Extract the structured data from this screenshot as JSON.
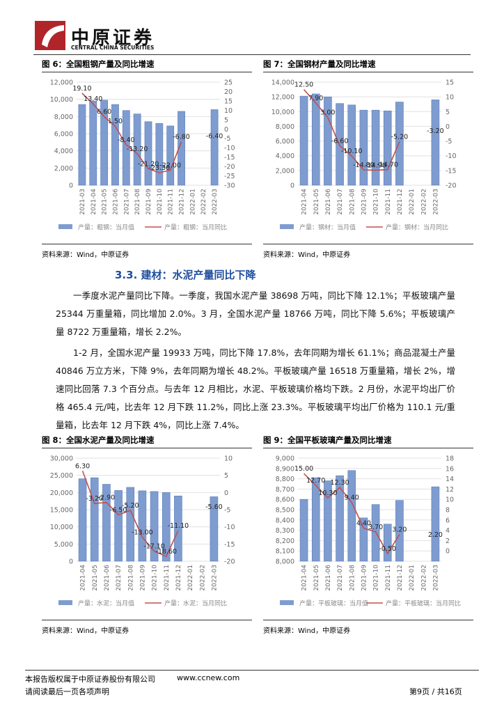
{
  "document": {
    "logo_cn": "中原证券",
    "logo_en": "CENTRAL CHINA SECURITIES",
    "section": "3.3. 建材：水泥产量同比下降",
    "paragraphs": [
      "一季度水泥产量同比下降。一季度，我国水泥产量 38698 万吨，同比下降 12.1%；平板玻璃产量 25344 万重量箱，同比增加 2.0%。3 月，全国水泥产量 18766 万吨，同比下降 5.6%；平板玻璃产量 8722 万重量箱，增长 2.2%。",
      "1-2 月，全国水泥产量 19933 万吨，同比下降 17.8%，去年同期为增长 61.1%；商品混凝土产量 40846 万立方米，下降 9%，去年同期为增长 48.2%。平板玻璃产量 16518 万重量箱，增长 2%，增速同比回落 7.3 个百分点。与去年 12 月相比，水泥、平板玻璃价格均下跌。2 月份，水泥平均出厂价格 465.4 元/吨，比去年 12 月下跌 11.2%，同比上涨 23.3%。平板玻璃平均出厂价格为 110.1 元/重量箱，比去年 12 月下跌 4%，同比上涨 7.4%。"
    ],
    "footer_copyright": "本报告版权属于中原证券股份有限公司",
    "footer_url": "www.ccnew.com",
    "footer_notice": "请阅读最后一页各项声明",
    "footer_page": "第9页 / 共16页"
  },
  "chart_data": [
    {
      "type": "combo",
      "title": "图 6：全国粗钢产量及同比增速",
      "source": "资料来源：Wind，中原证券",
      "categories": [
        "2021-03",
        "2021-04",
        "2021-05",
        "2021-06",
        "2021-07",
        "2021-08",
        "2021-09",
        "2021-10",
        "2021-11",
        "2021-12",
        "2022-01",
        "2022-02",
        "2022-03"
      ],
      "series": [
        {
          "name": "产量：粗钢：当月值",
          "type": "bar",
          "color": "#7e9ccf",
          "values": [
            9400,
            9800,
            9900,
            9400,
            8700,
            8300,
            7400,
            7200,
            6900,
            8600,
            null,
            null,
            8800
          ]
        },
        {
          "name": "产量：粗钢：当月同比",
          "type": "line",
          "axis": "y2",
          "color": "#c0504d",
          "values": [
            19.1,
            13.4,
            6.6,
            1.5,
            -8.4,
            -13.2,
            -21.2,
            -23.3,
            -22,
            -6.8,
            null,
            null,
            -6.4
          ],
          "value_labels": [
            "19.10",
            "13.40",
            "6.60",
            "1.50",
            "-8.40",
            "-13.20",
            "-21.20",
            "-23.30",
            "-22.00",
            "-6.80",
            null,
            null,
            "-6.40"
          ]
        }
      ],
      "ylim": [
        0,
        12000
      ],
      "yticks": [
        0,
        {
          "value": 2000,
          "label": "2,000"
        },
        {
          "value": 4000,
          "label": "4,000"
        },
        {
          "value": 6000,
          "label": "6,000"
        },
        {
          "value": 8000,
          "label": "8,000"
        },
        {
          "value": 10000,
          "label": "10,000"
        },
        {
          "value": 12000,
          "label": "12,000"
        }
      ],
      "y2lim": [
        -30,
        25
      ],
      "y2ticks": [
        -30,
        -25,
        -20,
        -15,
        -10,
        -5,
        0,
        5,
        10,
        15,
        20,
        25
      ]
    },
    {
      "type": "combo",
      "title": "图 7：全国钢材产量及同比增速",
      "source": "资料来源：Wind，中原证券",
      "categories": [
        "2021-04",
        "2021-05",
        "2021-06",
        "2021-07",
        "2021-08",
        "2021-09",
        "2021-10",
        "2021-11",
        "2021-12",
        "2022-01",
        "2022-02",
        "2022-03"
      ],
      "series": [
        {
          "name": "产量：钢材：当月值",
          "type": "bar",
          "color": "#7e9ccf",
          "values": [
            12100,
            12400,
            12000,
            11100,
            10900,
            10200,
            10200,
            10100,
            11300,
            null,
            null,
            11600
          ]
        },
        {
          "name": "产量：钢材：当月同比",
          "type": "line",
          "axis": "y2",
          "color": "#c0504d",
          "values": [
            12.5,
            7.9,
            3,
            -6.6,
            -10.1,
            -14.8,
            -14.9,
            -14.7,
            -5.2,
            null,
            null,
            -3.2
          ],
          "value_labels": [
            "12.50",
            "7.90",
            "3.00",
            "-6.60",
            "-10.10",
            "-14.80",
            "-14.90",
            "-14.70",
            "-5.20",
            null,
            null,
            "-3.20"
          ]
        }
      ],
      "ylim": [
        0,
        14000
      ],
      "yticks": [
        0,
        {
          "value": 2000,
          "label": "2,000"
        },
        {
          "value": 4000,
          "label": "4,000"
        },
        {
          "value": 6000,
          "label": "6,000"
        },
        {
          "value": 8000,
          "label": "8,000"
        },
        {
          "value": 10000,
          "label": "10,000"
        },
        {
          "value": 12000,
          "label": "12,000"
        },
        {
          "value": 14000,
          "label": "14,000"
        }
      ],
      "y2lim": [
        -20,
        15
      ],
      "y2ticks": [
        -20,
        -15,
        -10,
        -5,
        0,
        5,
        10,
        15
      ]
    },
    {
      "type": "combo",
      "title": "图 8：全国水泥产量及同比增速",
      "source": "资料来源：Wind，中原证券",
      "categories": [
        "2021-04",
        "2021-05",
        "2021-06",
        "2021-07",
        "2021-08",
        "2021-09",
        "2021-10",
        "2021-11",
        "2021-12",
        "2022-01",
        "2022-02",
        "2022-03"
      ],
      "series": [
        {
          "name": "产量：水泥：当月值",
          "type": "bar",
          "color": "#7e9ccf",
          "values": [
            24000,
            24300,
            22400,
            20600,
            21500,
            20500,
            20300,
            20000,
            19000,
            null,
            null,
            18766
          ]
        },
        {
          "name": "产量：水泥：当月同比",
          "type": "line",
          "axis": "y2",
          "color": "#c0504d",
          "values": [
            6.3,
            -3.2,
            -2.9,
            -6.5,
            -5.2,
            -13,
            -17.1,
            -18.6,
            -11.1,
            null,
            null,
            -5.6
          ],
          "value_labels": [
            "6.30",
            "-3.20",
            "-2.90",
            "-6.50",
            "-5.20",
            "-13.00",
            "-17.10",
            "-18.60",
            "-11.10",
            null,
            null,
            "-5.60"
          ]
        }
      ],
      "ylim": [
        0,
        30000
      ],
      "yticks": [
        0,
        {
          "value": 5000,
          "label": "5,000"
        },
        {
          "value": 10000,
          "label": "10,000"
        },
        {
          "value": 15000,
          "label": "15,000"
        },
        {
          "value": 20000,
          "label": "20,000"
        },
        {
          "value": 25000,
          "label": "25,000"
        },
        {
          "value": 30000,
          "label": "30,000"
        }
      ],
      "y2lim": [
        -20,
        10
      ],
      "y2ticks": [
        -20,
        -15,
        -10,
        -5,
        0,
        5,
        10
      ]
    },
    {
      "type": "combo",
      "title": "图 9：全国平板玻璃产量及同比增速",
      "source": "资料来源：Wind，中原证券",
      "categories": [
        "2021-04",
        "2021-05",
        "2021-06",
        "2021-07",
        "2021-08",
        "2021-09",
        "2021-10",
        "2021-11",
        "2021-12",
        "2022-01",
        "2022-02",
        "2022-03"
      ],
      "series": [
        {
          "name": "产量：平板玻璃：当月值",
          "type": "bar",
          "color": "#7e9ccf",
          "values": [
            8600,
            8810,
            8780,
            8830,
            8880,
            8420,
            8550,
            8360,
            8590,
            null,
            null,
            8722
          ]
        },
        {
          "name": "产量：平板玻璃：当月同比",
          "type": "line",
          "axis": "y2",
          "color": "#c0504d",
          "values": [
            15,
            12.7,
            10.3,
            12.3,
            9.4,
            4.4,
            3.7,
            -0.5,
            3.2,
            null,
            null,
            2.2
          ],
          "value_labels": [
            "15.00",
            "12.70",
            "10.30",
            "12.30",
            "9.40",
            "4.40",
            "3.70",
            "-0.50",
            "3.20",
            null,
            null,
            "2.20"
          ]
        }
      ],
      "ylim": [
        8000,
        9000
      ],
      "yticks": [
        {
          "value": 8000,
          "label": "8,000"
        },
        {
          "value": 8100,
          "label": "8,100"
        },
        {
          "value": 8200,
          "label": "8,200"
        },
        {
          "value": 8300,
          "label": "8,300"
        },
        {
          "value": 8400,
          "label": "8,400"
        },
        {
          "value": 8500,
          "label": "8,500"
        },
        {
          "value": 8600,
          "label": "8,600"
        },
        {
          "value": 8700,
          "label": "8,700"
        },
        {
          "value": 8800,
          "label": "8,800"
        },
        {
          "value": 8900,
          "label": "8,900"
        },
        {
          "value": 9000,
          "label": "9,000"
        }
      ],
      "y2lim": [
        -2,
        18
      ],
      "y2ticks": [
        0,
        2,
        4,
        6,
        8,
        10,
        12,
        14,
        16,
        18
      ]
    }
  ]
}
